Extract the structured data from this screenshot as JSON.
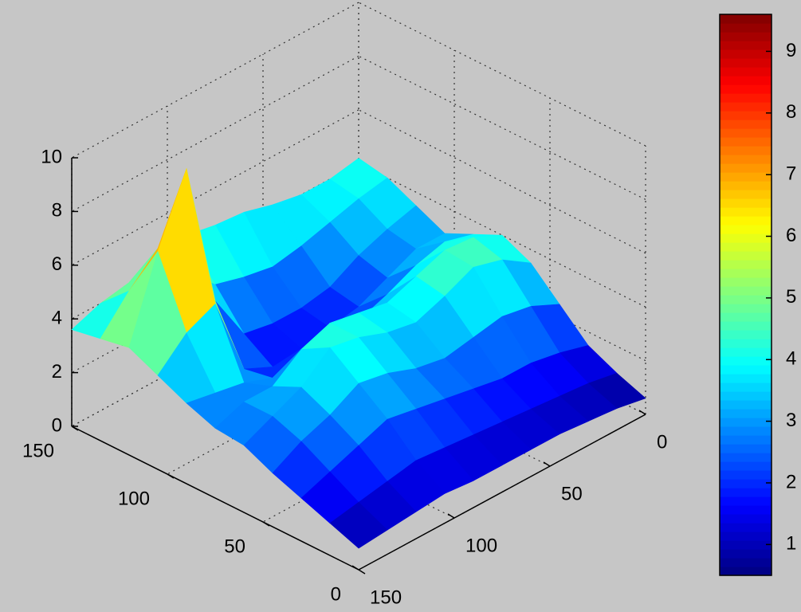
{
  "chart_data": {
    "type": "surface3d",
    "x": [
      0,
      15,
      30,
      45,
      60,
      75,
      90,
      105,
      120,
      135,
      150
    ],
    "y": [
      0,
      15,
      30,
      45,
      60,
      75,
      90,
      105,
      120,
      135,
      150
    ],
    "z": [
      [
        0.6,
        1.0,
        1.5,
        2.5,
        3.5,
        4.0,
        3.5,
        3.0,
        3.5,
        4.0,
        4.2
      ],
      [
        0.8,
        1.2,
        1.8,
        3.0,
        4.2,
        4.5,
        3.8,
        3.0,
        3.2,
        3.8,
        4.0
      ],
      [
        0.9,
        1.3,
        2.0,
        3.2,
        4.5,
        4.6,
        3.5,
        2.5,
        2.8,
        3.5,
        4.0
      ],
      [
        1.0,
        1.4,
        2.0,
        3.0,
        4.0,
        4.2,
        3.0,
        2.0,
        2.2,
        3.2,
        4.2
      ],
      [
        1.0,
        1.5,
        2.2,
        2.8,
        3.6,
        3.8,
        2.6,
        1.8,
        2.0,
        3.0,
        4.5
      ],
      [
        1.0,
        1.6,
        2.4,
        3.0,
        3.8,
        4.0,
        2.5,
        1.6,
        2.0,
        3.2,
        4.6
      ],
      [
        1.0,
        1.7,
        2.6,
        3.4,
        4.2,
        4.2,
        2.4,
        1.5,
        2.2,
        3.5,
        4.8
      ],
      [
        1.1,
        1.8,
        2.8,
        3.6,
        4.4,
        3.8,
        2.2,
        2.0,
        4.0,
        4.5,
        4.6
      ],
      [
        1.0,
        1.6,
        2.4,
        3.0,
        3.5,
        3.0,
        2.6,
        5.0,
        9.5,
        6.0,
        4.2
      ],
      [
        0.9,
        1.4,
        2.0,
        2.6,
        3.0,
        3.0,
        2.8,
        4.5,
        7.0,
        5.0,
        4.0
      ],
      [
        0.8,
        1.2,
        1.6,
        2.0,
        2.5,
        2.6,
        3.0,
        3.5,
        4.0,
        3.8,
        3.6
      ]
    ],
    "xlim": [
      0,
      150
    ],
    "ylim": [
      0,
      150
    ],
    "zlim": [
      0,
      10
    ],
    "xticks": [
      0,
      50,
      100,
      150
    ],
    "yticks": [
      0,
      50,
      100,
      150
    ],
    "zticks": [
      0,
      2,
      4,
      6,
      8,
      10
    ],
    "grid": true,
    "colormap": "jet",
    "colorbar": {
      "clim": [
        0.5,
        9.6
      ],
      "ticks": [
        1,
        2,
        3,
        4,
        5,
        6,
        7,
        8,
        9
      ]
    }
  }
}
